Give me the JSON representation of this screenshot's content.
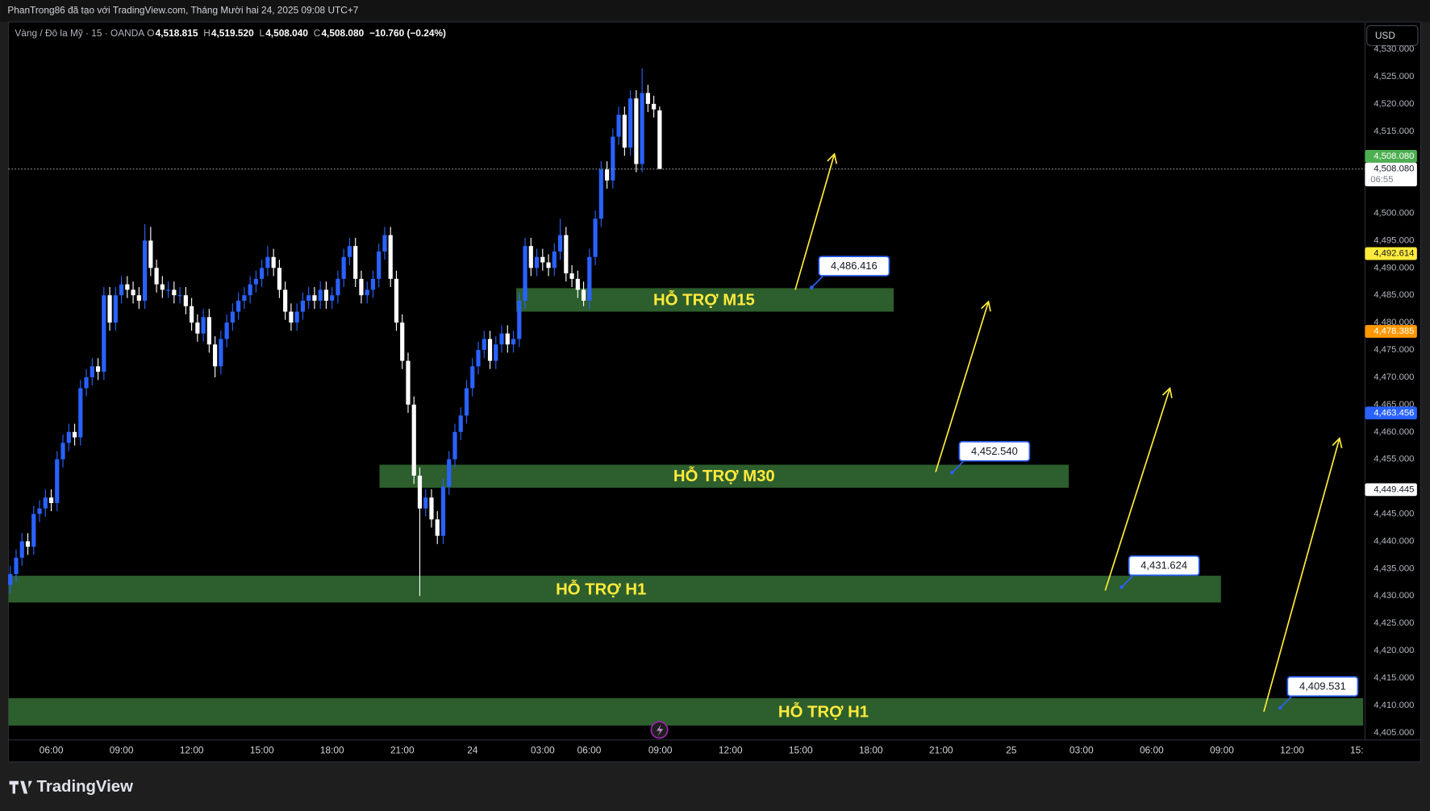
{
  "header": "PhanTrong86 đã tạo với TradingView.com, Tháng Mười hai 24, 2025 09:08 UTC+7",
  "footer_logo": "TradingView",
  "currency_button": "USD",
  "chart_data": {
    "type": "candlestick",
    "symbol": "Vàng / Đô la Mỹ · 15 · OANDA",
    "ohlc": [
      {
        "label": "O",
        "value": "4,518.815"
      },
      {
        "label": "H",
        "value": "4,519.520"
      },
      {
        "label": "L",
        "value": "4,508.040"
      },
      {
        "label": "C",
        "value": "4,508.080"
      }
    ],
    "change": "−10.760 (−0.24%)",
    "up_color": "#2962ff",
    "down_color": "#ffffff",
    "candles": [
      [
        4432,
        4435.5,
        4430.5,
        4434
      ],
      [
        4434,
        4438.5,
        4432.5,
        4437
      ],
      [
        4437,
        4441.5,
        4435.5,
        4440
      ],
      [
        4440,
        4441.5,
        4437.5,
        4439
      ],
      [
        4439,
        4446.5,
        4437.5,
        4445
      ],
      [
        4445,
        4447.5,
        4443.5,
        4446
      ],
      [
        4446,
        4449.5,
        4444.5,
        4448
      ],
      [
        4448,
        4449.5,
        4445.5,
        4447
      ],
      [
        4447,
        4456.5,
        4445.5,
        4455
      ],
      [
        4455,
        4459.5,
        4453.5,
        4458
      ],
      [
        4458,
        4461.5,
        4456.5,
        4460
      ],
      [
        4460,
        4461.5,
        4457.5,
        4459
      ],
      [
        4459,
        4469.5,
        4457.5,
        4468
      ],
      [
        4468,
        4471.5,
        4466.5,
        4470
      ],
      [
        4470,
        4473.5,
        4468.5,
        4472
      ],
      [
        4472,
        4473.5,
        4469.5,
        4471
      ],
      [
        4471,
        4486.5,
        4469.5,
        4485
      ],
      [
        4485,
        4486.5,
        4478.5,
        4480
      ],
      [
        4480,
        4486.5,
        4478.5,
        4485
      ],
      [
        4485,
        4488.5,
        4483.5,
        4487
      ],
      [
        4487,
        4488.5,
        4484.5,
        4486
      ],
      [
        4486,
        4487.5,
        4483.5,
        4485
      ],
      [
        4485,
        4486.5,
        4482.5,
        4484
      ],
      [
        4484,
        4498,
        4482.5,
        4495
      ],
      [
        4495,
        4497.5,
        4488.5,
        4490
      ],
      [
        4490,
        4491.5,
        4485.5,
        4487
      ],
      [
        4487,
        4488.5,
        4484.5,
        4486
      ],
      [
        4486,
        4487.5,
        4484.5,
        4486
      ],
      [
        4486,
        4487.5,
        4483.5,
        4485
      ],
      [
        4485,
        4486.5,
        4483.5,
        4485
      ],
      [
        4485,
        4486.5,
        4481.5,
        4483
      ],
      [
        4483,
        4484.5,
        4478.5,
        4480
      ],
      [
        4480,
        4481.5,
        4476.5,
        4478
      ],
      [
        4478,
        4482.5,
        4476.5,
        4481
      ],
      [
        4481,
        4482.5,
        4474.5,
        4476
      ],
      [
        4476,
        4477.5,
        4470,
        4472
      ],
      [
        4472,
        4478.5,
        4470.5,
        4477
      ],
      [
        4477,
        4481.5,
        4475.5,
        4480
      ],
      [
        4480,
        4483.5,
        4478.5,
        4482
      ],
      [
        4482,
        4485.5,
        4480.5,
        4484
      ],
      [
        4484,
        4486.5,
        4482.5,
        4485
      ],
      [
        4485,
        4488.5,
        4483.5,
        4487
      ],
      [
        4487,
        4489.5,
        4485.5,
        4488
      ],
      [
        4488,
        4491.5,
        4486.5,
        4490
      ],
      [
        4490,
        4494,
        4488.5,
        4492
      ],
      [
        4492,
        4493.5,
        4488.5,
        4490
      ],
      [
        4490,
        4491.5,
        4484.5,
        4486
      ],
      [
        4486,
        4487.5,
        4480.5,
        4482
      ],
      [
        4482,
        4483.5,
        4478.5,
        4480
      ],
      [
        4480,
        4483.5,
        4478.5,
        4482
      ],
      [
        4482,
        4485.5,
        4480.5,
        4484
      ],
      [
        4484,
        4486.5,
        4482.5,
        4485
      ],
      [
        4485,
        4486.5,
        4482.5,
        4484
      ],
      [
        4484,
        4487.5,
        4482.5,
        4486
      ],
      [
        4486,
        4487.5,
        4482.5,
        4484
      ],
      [
        4484,
        4486.5,
        4482.5,
        4485
      ],
      [
        4485,
        4489.5,
        4483.5,
        4488
      ],
      [
        4488,
        4493.5,
        4486.5,
        4492
      ],
      [
        4492,
        4495.5,
        4490.5,
        4494
      ],
      [
        4494,
        4495.5,
        4486.5,
        4488
      ],
      [
        4488,
        4489.5,
        4483.5,
        4485
      ],
      [
        4485,
        4487.5,
        4483.5,
        4486
      ],
      [
        4486,
        4489.5,
        4484.5,
        4488
      ],
      [
        4488,
        4494.5,
        4486.5,
        4493
      ],
      [
        4493,
        4497.5,
        4491.5,
        4496
      ],
      [
        4496,
        4497.5,
        4486.5,
        4488
      ],
      [
        4488,
        4489.5,
        4478.5,
        4480
      ],
      [
        4480,
        4481.5,
        4471.5,
        4473
      ],
      [
        4473,
        4474.5,
        4463.5,
        4465
      ],
      [
        4465,
        4466.5,
        4450.5,
        4452
      ],
      [
        4452,
        4453.5,
        4430,
        4446
      ],
      [
        4446,
        4449.5,
        4444.5,
        4448
      ],
      [
        4448,
        4449.5,
        4442.5,
        4444
      ],
      [
        4444,
        4445.5,
        4439.5,
        4441
      ],
      [
        4441,
        4451.5,
        4439.5,
        4450
      ],
      [
        4450,
        4456.5,
        4448.5,
        4455
      ],
      [
        4455,
        4461.5,
        4453.5,
        4460
      ],
      [
        4460,
        4464.5,
        4458.5,
        4463
      ],
      [
        4463,
        4469.5,
        4461.5,
        4468
      ],
      [
        4468,
        4473.5,
        4466.5,
        4472
      ],
      [
        4472,
        4476.5,
        4470.5,
        4475
      ],
      [
        4475,
        4478.5,
        4473.5,
        4477
      ],
      [
        4477,
        4478.5,
        4471.5,
        4473
      ],
      [
        4473,
        4477.5,
        4471.5,
        4476
      ],
      [
        4476,
        4479.5,
        4474.5,
        4478
      ],
      [
        4478,
        4479.5,
        4474.5,
        4476
      ],
      [
        4476,
        4478.5,
        4474.5,
        4477
      ],
      [
        4477,
        4485.5,
        4475.5,
        4484
      ],
      [
        4484,
        4495.5,
        4482.5,
        4494
      ],
      [
        4494,
        4495.5,
        4488.5,
        4490
      ],
      [
        4490,
        4493.5,
        4488.5,
        4492
      ],
      [
        4492,
        4493.5,
        4489.5,
        4491
      ],
      [
        4491,
        4492.5,
        4488.5,
        4490
      ],
      [
        4490,
        4494.5,
        4488.5,
        4493
      ],
      [
        4493,
        4499,
        4491.5,
        4496
      ],
      [
        4496,
        4497.5,
        4487.5,
        4489
      ],
      [
        4489,
        4490.5,
        4486.5,
        4488
      ],
      [
        4488,
        4489.5,
        4484.5,
        4486
      ],
      [
        4486,
        4487.5,
        4483,
        4484
      ],
      [
        4484,
        4493.5,
        4482.5,
        4492
      ],
      [
        4492,
        4500.5,
        4490.5,
        4499
      ],
      [
        4499,
        4509.5,
        4497.5,
        4508
      ],
      [
        4508,
        4509.5,
        4504.5,
        4506
      ],
      [
        4506,
        4515.5,
        4504.5,
        4514
      ],
      [
        4514,
        4519.5,
        4512.5,
        4518
      ],
      [
        4518,
        4519.5,
        4510.5,
        4512
      ],
      [
        4512,
        4522.5,
        4510.5,
        4521
      ],
      [
        4521,
        4522.5,
        4507.5,
        4509
      ],
      [
        4509,
        4526.5,
        4507.5,
        4522
      ],
      [
        4522,
        4523.5,
        4518.5,
        4520
      ],
      [
        4520,
        4521.5,
        4517.5,
        4519
      ],
      [
        4518.815,
        4519.52,
        4508.04,
        4508.08
      ]
    ],
    "last_price": 4508.08,
    "ylim": [
      4404,
      4535
    ],
    "yticks": [
      {
        "value": 4405,
        "label": "4,405.000"
      },
      {
        "value": 4410,
        "label": "4,410.000"
      },
      {
        "value": 4415,
        "label": "4,415.000"
      },
      {
        "value": 4420,
        "label": "4,420.000"
      },
      {
        "value": 4425,
        "label": "4,425.000"
      },
      {
        "value": 4430,
        "label": "4,430.000"
      },
      {
        "value": 4435,
        "label": "4,435.000"
      },
      {
        "value": 4440,
        "label": "4,440.000"
      },
      {
        "value": 4445,
        "label": "4,445.000"
      },
      {
        "value": 4455,
        "label": "4,455.000"
      },
      {
        "value": 4460,
        "label": "4,460.000"
      },
      {
        "value": 4465,
        "label": "4,465.000"
      },
      {
        "value": 4470,
        "label": "4,470.000"
      },
      {
        "value": 4475,
        "label": "4,475.000"
      },
      {
        "value": 4480,
        "label": "4,480.000"
      },
      {
        "value": 4485,
        "label": "4,485.000"
      },
      {
        "value": 4490,
        "label": "4,490.000"
      },
      {
        "value": 4495,
        "label": "4,495.000"
      },
      {
        "value": 4500,
        "label": "4,500.000"
      },
      {
        "value": 4510,
        "label": "4,510.000"
      },
      {
        "value": 4515,
        "label": "4,515.000"
      },
      {
        "value": 4520,
        "label": "4,520.000"
      },
      {
        "value": 4525,
        "label": "4,525.000"
      },
      {
        "value": 4530,
        "label": "4,530.000"
      }
    ],
    "grid": false,
    "xtick_labels": [
      "06:00",
      "09:00",
      "12:00",
      "15:00",
      "18:00",
      "21:00",
      "24",
      "03:00",
      "06:00",
      "09:00",
      "12:00",
      "15:00",
      "18:00",
      "21:00",
      "25",
      "03:00",
      "06:00",
      "09:00",
      "12:00",
      "15:"
    ],
    "price_badges": [
      {
        "value": 4508.08,
        "label": "4,508.080",
        "color": "#4caf50",
        "text_color": "#ffffff"
      },
      {
        "value": 4508.08,
        "label": "4,508.080",
        "color": "#ffffff",
        "text_color": "#131722"
      },
      {
        "value": 4492.614,
        "label": "4,492.614",
        "color": "#ffeb3b",
        "text_color": "#131722"
      },
      {
        "value": 4478.385,
        "label": "4,478.385",
        "color": "#ff9800",
        "text_color": "#ffffff"
      },
      {
        "value": 4463.456,
        "label": "4,463.456",
        "color": "#2962ff",
        "text_color": "#ffffff"
      },
      {
        "value": 4449.445,
        "label": "4,449.445",
        "color": "#ffffff",
        "text_color": "#131722"
      }
    ],
    "countdown": "06:55",
    "zone_color": "#2d5e2d",
    "zone_label_color": "#ffeb3b",
    "zones": [
      {
        "label": "HỖ TRỢ M15",
        "top": 4486.3,
        "bottom": 4482
      },
      {
        "label": "HỖ TRỢ M30",
        "top": 4454,
        "bottom": 4449.8
      },
      {
        "label": "HỖ TRỢ H1",
        "top": 4433.7,
        "bottom": 4428.8
      },
      {
        "label": "HỖ TRỢ H1",
        "top": 4411.3,
        "bottom": 4406.3
      }
    ],
    "callouts": [
      {
        "value": 4486.416,
        "label": "4,486.416"
      },
      {
        "value": 4452.54,
        "label": "4,452.540"
      },
      {
        "value": 4431.624,
        "label": "4,431.624"
      },
      {
        "value": 4409.531,
        "label": "4,409.531"
      }
    ],
    "arrow_color": "#ffeb3b"
  }
}
